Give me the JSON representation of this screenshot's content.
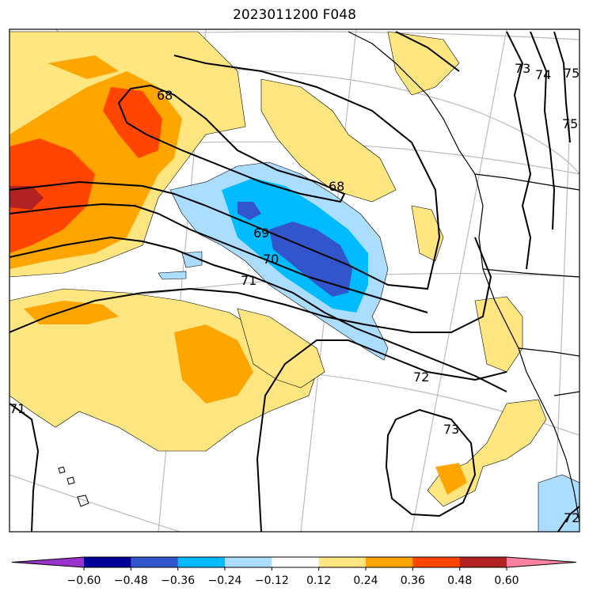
{
  "title": "2023011200 F048",
  "colorbar": {
    "bins": [
      {
        "color": "#9933cc"
      },
      {
        "color": "#000099"
      },
      {
        "color": "#3355cc"
      },
      {
        "color": "#00bbff"
      },
      {
        "color": "#aaddff"
      },
      {
        "color": "#ffffff"
      },
      {
        "color": "#ffe680"
      },
      {
        "color": "#ffa500"
      },
      {
        "color": "#ff4500"
      },
      {
        "color": "#b22222"
      },
      {
        "color": "#ff80a0"
      }
    ],
    "ticks": [
      "−0.60",
      "−0.48",
      "−0.36",
      "−0.24",
      "−0.12",
      "0.12",
      "0.24",
      "0.36",
      "0.48",
      "0.60"
    ]
  },
  "contour_labels": [
    "68",
    "68",
    "69",
    "70",
    "71",
    "72",
    "73",
    "73",
    "74",
    "75",
    "75",
    "71",
    "72"
  ],
  "colors": {
    "positive_light": "#ffe680",
    "positive_mid": "#ffa500",
    "positive_strong": "#ff4500",
    "positive_max": "#b22222",
    "negative_light": "#aaddff",
    "negative_mid": "#00bbff",
    "negative_strong": "#3355cc",
    "contour": "#000000",
    "graticule": "#bbbbbb"
  }
}
